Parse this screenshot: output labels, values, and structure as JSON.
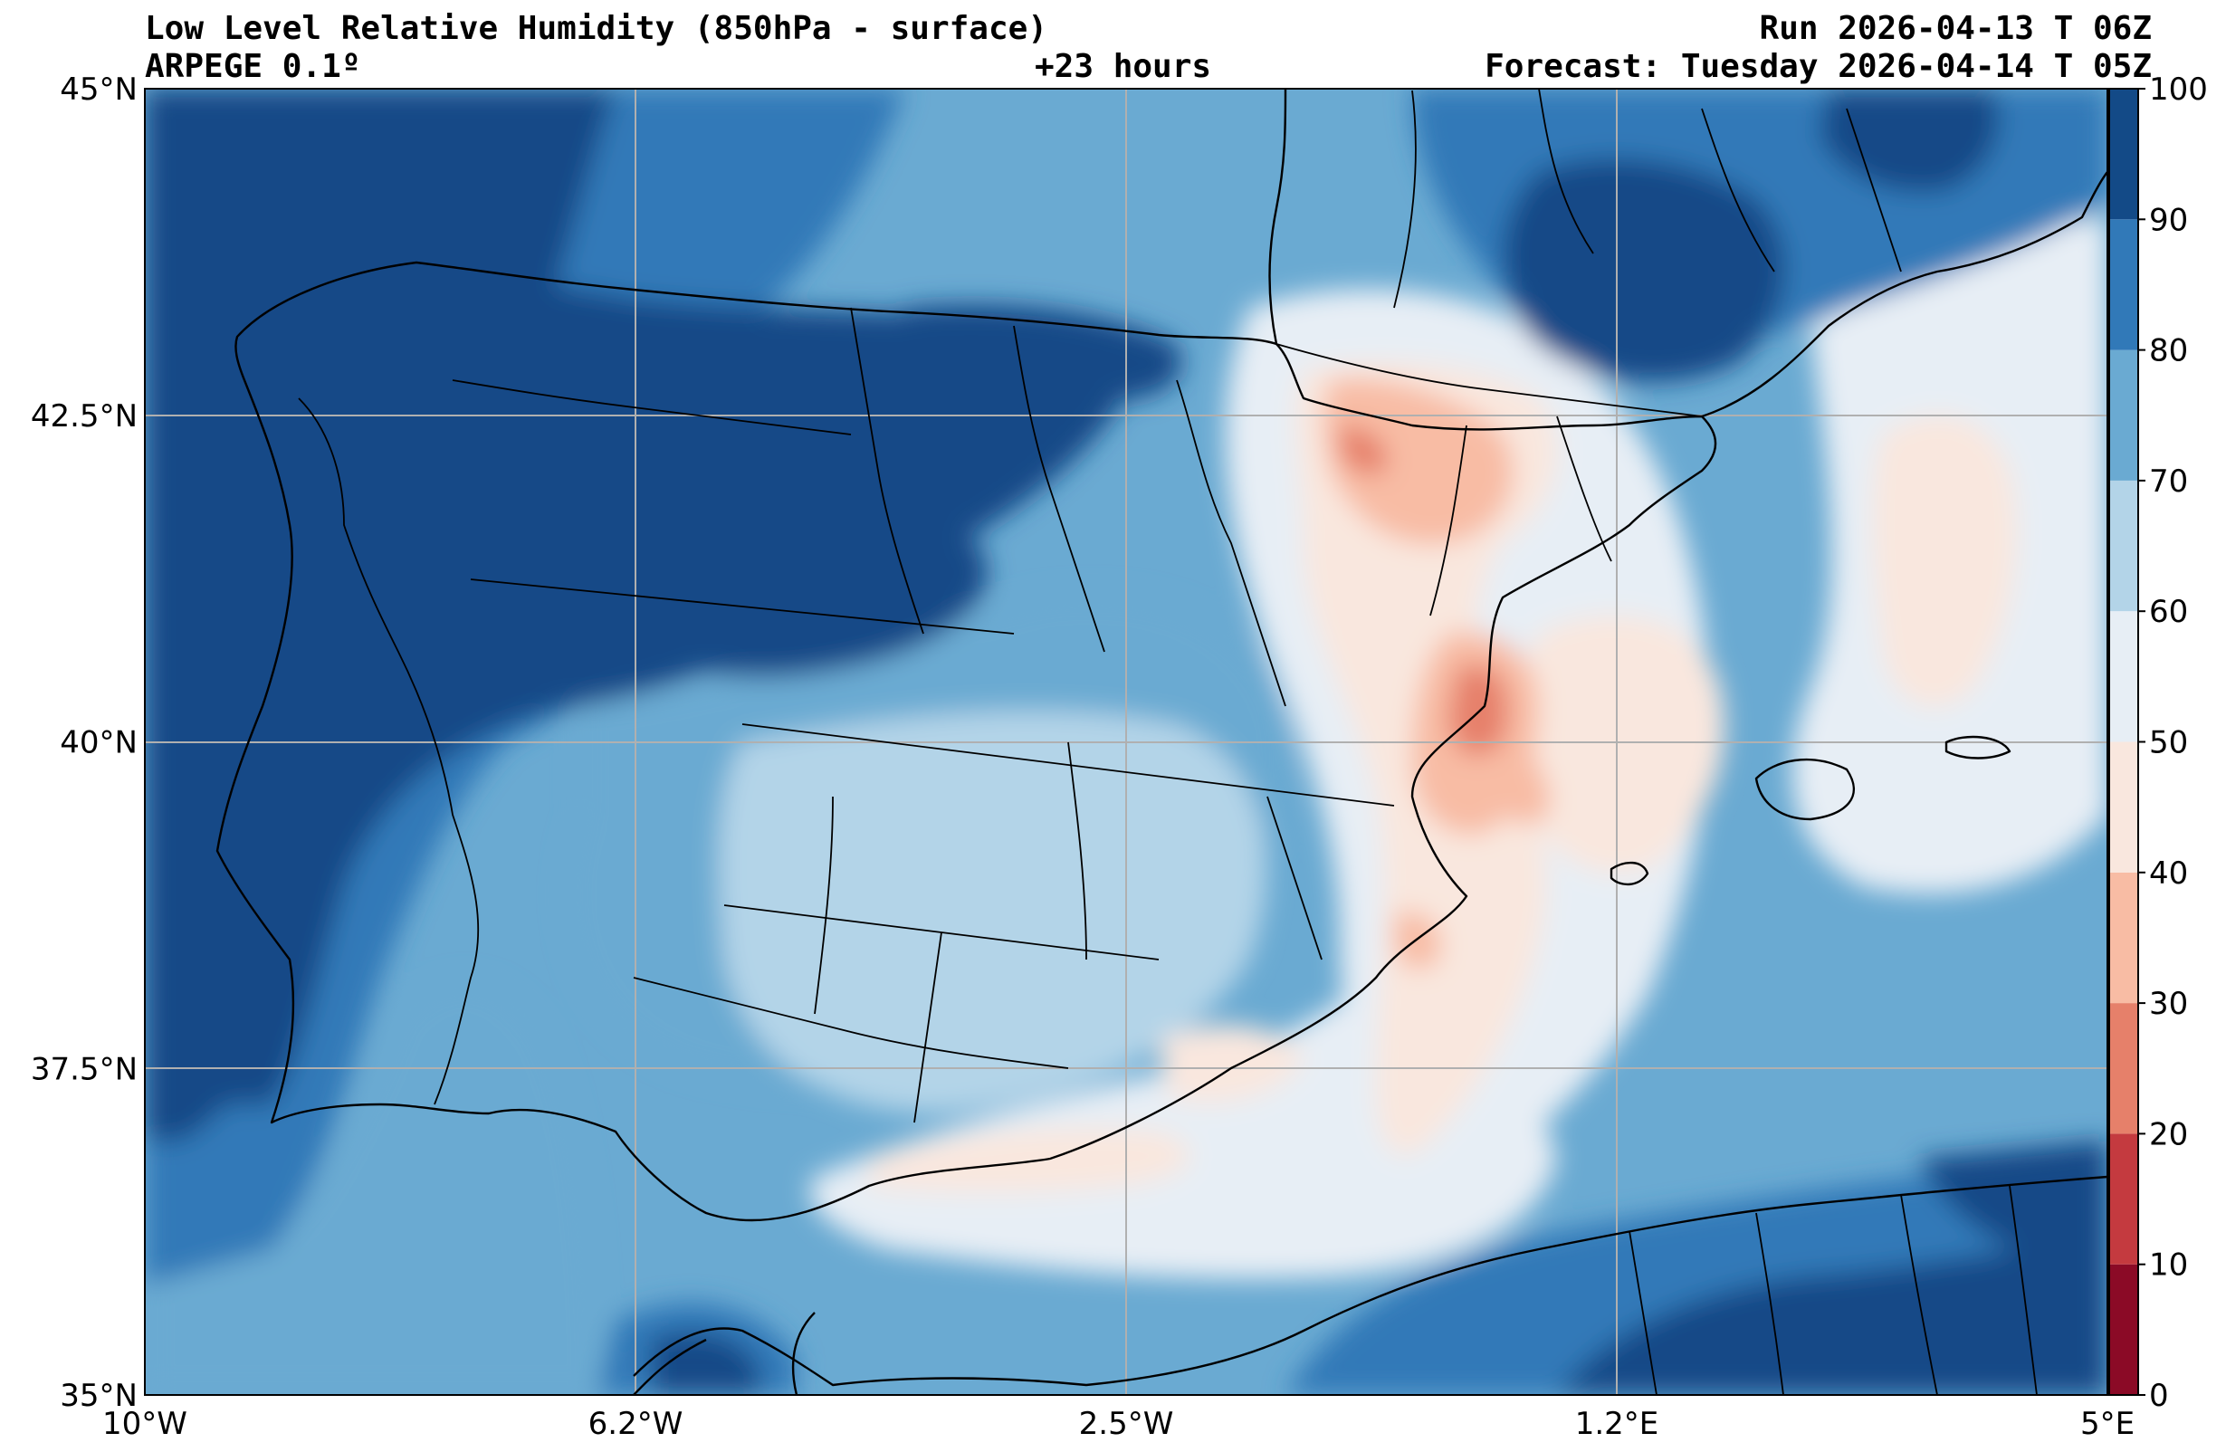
{
  "header": {
    "title": "Low Level Relative Humidity (850hPa - surface)",
    "model": "ARPEGE 0.1º",
    "lead_time": "+23 hours",
    "run": "Run 2026-04-13 T 06Z",
    "forecast": "Forecast: Tuesday 2026-04-14 T 05Z"
  },
  "map": {
    "projection": "PlateCarree",
    "lon_range": [
      -10,
      5
    ],
    "lat_range": [
      35,
      45
    ],
    "lon_ticks": [
      {
        "value": -10,
        "label": "10°W"
      },
      {
        "value": -6.25,
        "label": "6.2°W"
      },
      {
        "value": -2.5,
        "label": "2.5°W"
      },
      {
        "value": 1.25,
        "label": "1.2°E"
      },
      {
        "value": 5,
        "label": "5°E"
      }
    ],
    "lat_ticks": [
      {
        "value": 35,
        "label": "35°N"
      },
      {
        "value": 37.5,
        "label": "37.5°N"
      },
      {
        "value": 40,
        "label": "40°N"
      },
      {
        "value": 42.5,
        "label": "42.5°N"
      },
      {
        "value": 45,
        "label": "45°N"
      }
    ],
    "gridlines": true,
    "colorbar": {
      "levels": [
        0,
        10,
        20,
        30,
        40,
        50,
        60,
        70,
        80,
        90,
        100
      ],
      "labels": [
        "0",
        "10",
        "20",
        "30",
        "40",
        "50",
        "60",
        "70",
        "80",
        "90",
        "100"
      ],
      "colors": [
        "#8b0a26",
        "#c43a3f",
        "#e6806a",
        "#f8bca4",
        "#f9e7de",
        "#e7eef5",
        "#b3d4e8",
        "#6aaad2",
        "#3179b8",
        "#134a87"
      ]
    }
  }
}
